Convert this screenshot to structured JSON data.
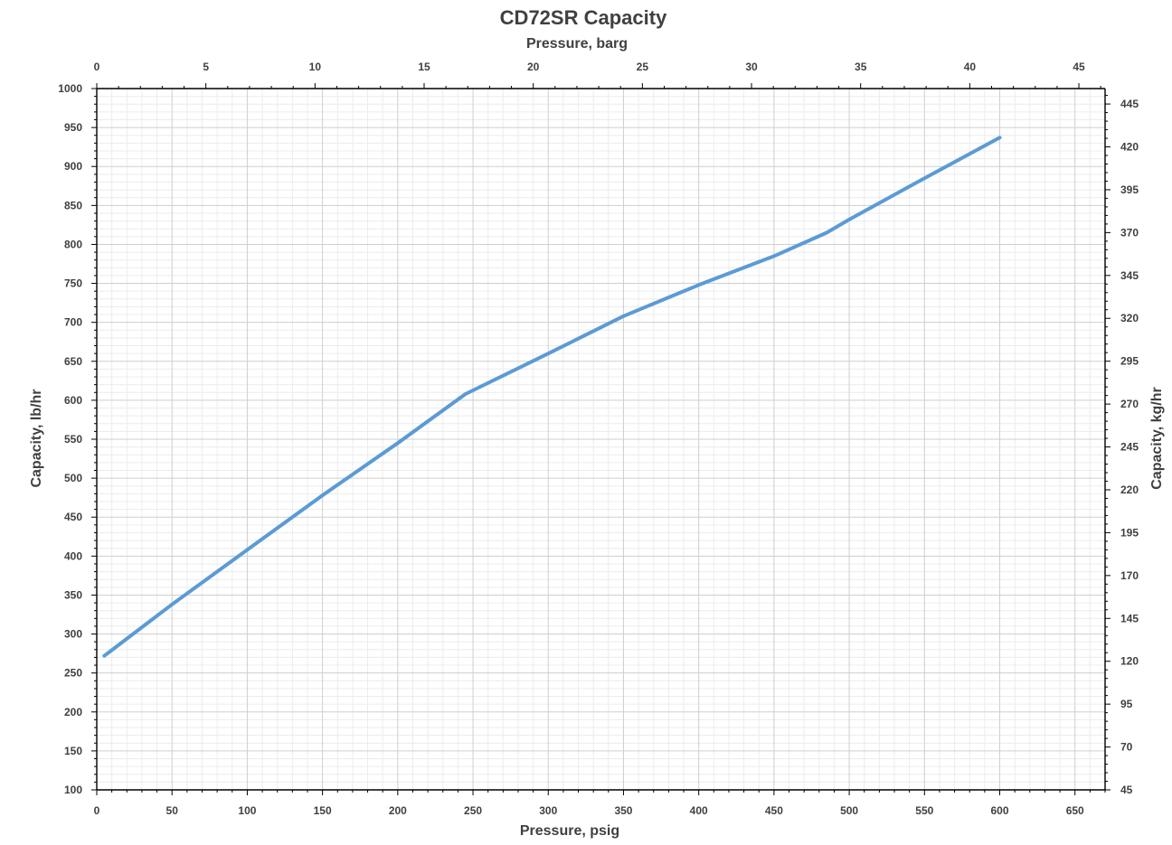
{
  "chart_data": {
    "type": "line",
    "title": "CD72SR Capacity",
    "x_bottom": {
      "label": "Pressure, psig",
      "range": [
        0,
        670
      ],
      "ticks": [
        0,
        50,
        100,
        150,
        200,
        250,
        300,
        350,
        400,
        450,
        500,
        550,
        600,
        650
      ]
    },
    "x_top": {
      "label": "Pressure, barg",
      "range": [
        0,
        46.2
      ],
      "ticks": [
        0,
        5,
        10,
        15,
        20,
        25,
        30,
        35,
        40,
        45
      ]
    },
    "y_left": {
      "label": "Capacity, lb/hr",
      "range": [
        100,
        1000
      ],
      "ticks": [
        100,
        150,
        200,
        250,
        300,
        350,
        400,
        450,
        500,
        550,
        600,
        650,
        700,
        750,
        800,
        850,
        900,
        950,
        1000
      ]
    },
    "y_right": {
      "label": "Capacity, kg/hr",
      "range": [
        45,
        454
      ],
      "ticks": [
        45,
        70,
        95,
        120,
        145,
        170,
        195,
        220,
        245,
        270,
        295,
        320,
        345,
        370,
        395,
        420,
        445
      ]
    },
    "grid": true,
    "colors": {
      "series": "#5b9bd5"
    },
    "series": [
      {
        "x": [
          5,
          50,
          100,
          150,
          200,
          245,
          300,
          350,
          400,
          450,
          485,
          500,
          550,
          600
        ],
        "y": [
          272,
          338,
          408,
          478,
          545,
          608,
          660,
          708,
          748,
          785,
          815,
          832,
          885,
          937
        ]
      }
    ]
  }
}
